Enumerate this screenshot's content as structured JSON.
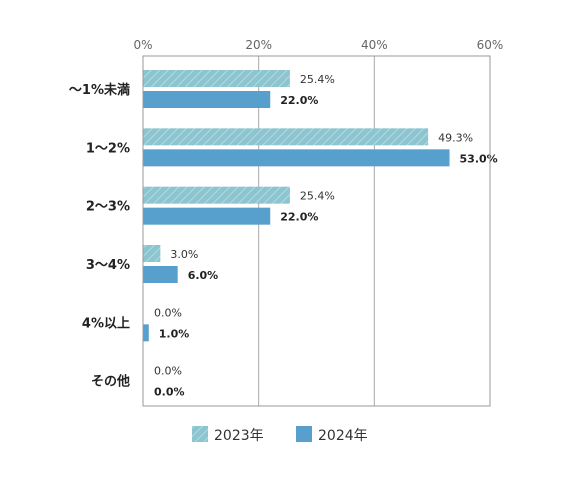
{
  "chart_data": {
    "type": "bar",
    "orientation": "horizontal",
    "categories": [
      "～1%未満",
      "1～2%",
      "2～3%",
      "3～4%",
      "4%以上",
      "その他"
    ],
    "series": [
      {
        "name": "2023年",
        "values": [
          25.4,
          49.3,
          25.4,
          3.0,
          0.0,
          0.0
        ],
        "labels": [
          "25.4%",
          "49.3%",
          "25.4%",
          "3.0%",
          "0.0%",
          "0.0%"
        ],
        "color": "#8cc4cf",
        "pattern": "diagonal-hatch"
      },
      {
        "name": "2024年",
        "values": [
          22.0,
          53.0,
          22.0,
          6.0,
          1.0,
          0.0
        ],
        "labels": [
          "22.0%",
          "53.0%",
          "22.0%",
          "6.0%",
          "1.0%",
          "0.0%"
        ],
        "color": "#579fcd"
      }
    ],
    "xlim": [
      0,
      60
    ],
    "xticks": [
      "0%",
      "20%",
      "40%",
      "60%"
    ],
    "xtick_values": [
      0,
      20,
      40,
      60
    ],
    "grid": true,
    "axis_position": "top",
    "legend_position": "bottom"
  }
}
